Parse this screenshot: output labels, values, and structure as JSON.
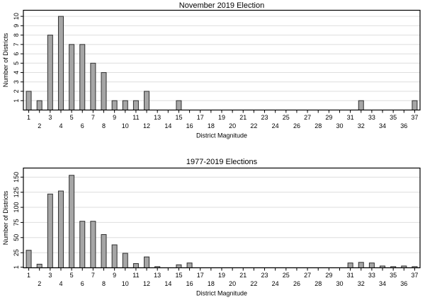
{
  "figure": {
    "background": "#ffffff"
  },
  "colors": {
    "bar_fill": "#a6a6a6",
    "bar_stroke": "#303030",
    "gridline": "#dedede",
    "frame": "#000000",
    "text": "#000000"
  },
  "chart_data": [
    {
      "type": "bar",
      "title": "November 2019 Election",
      "xlabel": "District Magnitude",
      "ylabel": "Number of Districts",
      "categories": [
        1,
        2,
        3,
        4,
        5,
        6,
        7,
        8,
        9,
        10,
        11,
        12,
        13,
        14,
        15,
        16,
        17,
        18,
        19,
        20,
        21,
        22,
        23,
        24,
        25,
        26,
        27,
        28,
        29,
        30,
        31,
        32,
        33,
        34,
        35,
        36,
        37
      ],
      "values": [
        2,
        1,
        8,
        10,
        7,
        7,
        5,
        4,
        1,
        1,
        1,
        2,
        0,
        0,
        1,
        0,
        0,
        0,
        0,
        0,
        0,
        0,
        0,
        0,
        0,
        0,
        0,
        0,
        0,
        0,
        0,
        1,
        0,
        0,
        0,
        0,
        1
      ],
      "yticks": [
        1,
        2,
        3,
        4,
        5,
        6,
        7,
        8,
        9,
        10
      ],
      "ylim": [
        0,
        10.65
      ],
      "grid": true,
      "legend": "none",
      "x_label_stagger": true
    },
    {
      "type": "bar",
      "title": "1977-2019 Elections",
      "xlabel": "District Magnitude",
      "ylabel": "Number of Districts",
      "categories": [
        1,
        2,
        3,
        4,
        5,
        6,
        7,
        8,
        9,
        10,
        11,
        12,
        13,
        14,
        15,
        16,
        17,
        18,
        19,
        20,
        21,
        22,
        23,
        24,
        25,
        26,
        27,
        28,
        29,
        30,
        31,
        32,
        33,
        34,
        35,
        36,
        37
      ],
      "values": [
        29,
        6,
        122,
        127,
        153,
        77,
        77,
        55,
        38,
        24,
        7,
        18,
        2,
        0,
        5,
        8,
        0,
        0,
        0,
        0,
        0,
        0,
        0,
        0,
        0,
        0,
        0,
        0,
        0,
        0,
        8,
        9,
        8,
        3,
        2,
        3,
        2
      ],
      "yticks": [
        1,
        25,
        50,
        75,
        100,
        125,
        150
      ],
      "ylim": [
        0,
        165
      ],
      "grid": true,
      "legend": "none",
      "x_label_stagger": true
    }
  ]
}
